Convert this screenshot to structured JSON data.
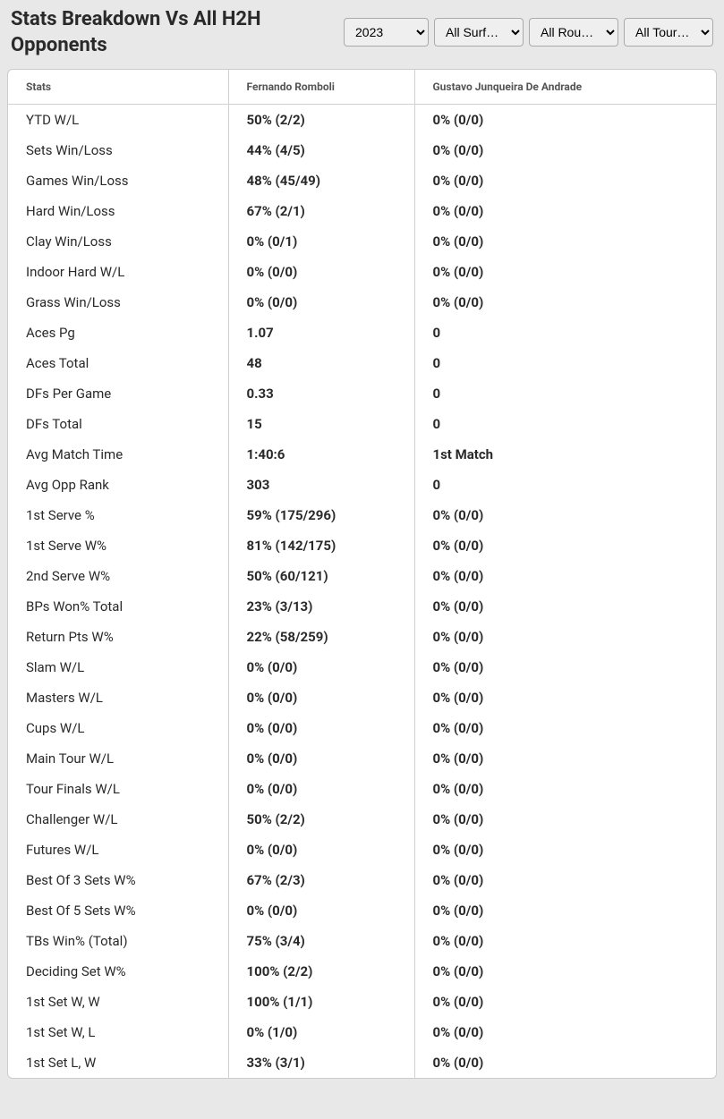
{
  "header": {
    "title": "Stats Breakdown Vs All H2H Opponents"
  },
  "filters": {
    "year": "2023",
    "surface": "All Surfa…",
    "round": "All Rounds",
    "tour": "All Tour…"
  },
  "table": {
    "columns": {
      "stat": "Stats",
      "p1": "Fernando Romboli",
      "p2": "Gustavo Junqueira De Andrade"
    },
    "rows": [
      {
        "stat": "YTD W/L",
        "p1": "50% (2/2)",
        "p2": "0% (0/0)"
      },
      {
        "stat": "Sets Win/Loss",
        "p1": "44% (4/5)",
        "p2": "0% (0/0)"
      },
      {
        "stat": "Games Win/Loss",
        "p1": "48% (45/49)",
        "p2": "0% (0/0)"
      },
      {
        "stat": "Hard Win/Loss",
        "p1": "67% (2/1)",
        "p2": "0% (0/0)"
      },
      {
        "stat": "Clay Win/Loss",
        "p1": "0% (0/1)",
        "p2": "0% (0/0)"
      },
      {
        "stat": "Indoor Hard W/L",
        "p1": "0% (0/0)",
        "p2": "0% (0/0)"
      },
      {
        "stat": "Grass Win/Loss",
        "p1": "0% (0/0)",
        "p2": "0% (0/0)"
      },
      {
        "stat": "Aces Pg",
        "p1": "1.07",
        "p2": "0"
      },
      {
        "stat": "Aces Total",
        "p1": "48",
        "p2": "0"
      },
      {
        "stat": "DFs Per Game",
        "p1": "0.33",
        "p2": "0"
      },
      {
        "stat": "DFs Total",
        "p1": "15",
        "p2": "0"
      },
      {
        "stat": "Avg Match Time",
        "p1": "1:40:6",
        "p2": "1st Match"
      },
      {
        "stat": "Avg Opp Rank",
        "p1": "303",
        "p2": "0"
      },
      {
        "stat": "1st Serve %",
        "p1": "59% (175/296)",
        "p2": "0% (0/0)"
      },
      {
        "stat": "1st Serve W%",
        "p1": "81% (142/175)",
        "p2": "0% (0/0)"
      },
      {
        "stat": "2nd Serve W%",
        "p1": "50% (60/121)",
        "p2": "0% (0/0)"
      },
      {
        "stat": "BPs Won% Total",
        "p1": "23% (3/13)",
        "p2": "0% (0/0)"
      },
      {
        "stat": "Return Pts W%",
        "p1": "22% (58/259)",
        "p2": "0% (0/0)"
      },
      {
        "stat": "Slam W/L",
        "p1": "0% (0/0)",
        "p2": "0% (0/0)"
      },
      {
        "stat": "Masters W/L",
        "p1": "0% (0/0)",
        "p2": "0% (0/0)"
      },
      {
        "stat": "Cups W/L",
        "p1": "0% (0/0)",
        "p2": "0% (0/0)"
      },
      {
        "stat": "Main Tour W/L",
        "p1": "0% (0/0)",
        "p2": "0% (0/0)"
      },
      {
        "stat": "Tour Finals W/L",
        "p1": "0% (0/0)",
        "p2": "0% (0/0)"
      },
      {
        "stat": "Challenger W/L",
        "p1": "50% (2/2)",
        "p2": "0% (0/0)"
      },
      {
        "stat": "Futures W/L",
        "p1": "0% (0/0)",
        "p2": "0% (0/0)"
      },
      {
        "stat": "Best Of 3 Sets W%",
        "p1": "67% (2/3)",
        "p2": "0% (0/0)"
      },
      {
        "stat": "Best Of 5 Sets W%",
        "p1": "0% (0/0)",
        "p2": "0% (0/0)"
      },
      {
        "stat": "TBs Win% (Total)",
        "p1": "75% (3/4)",
        "p2": "0% (0/0)"
      },
      {
        "stat": "Deciding Set W%",
        "p1": "100% (2/2)",
        "p2": "0% (0/0)"
      },
      {
        "stat": "1st Set W, W",
        "p1": "100% (1/1)",
        "p2": "0% (0/0)"
      },
      {
        "stat": "1st Set W, L",
        "p1": "0% (1/0)",
        "p2": "0% (0/0)"
      },
      {
        "stat": "1st Set L, W",
        "p1": "33% (3/1)",
        "p2": "0% (0/0)"
      }
    ]
  },
  "colors": {
    "page_bg": "#e8e8e8",
    "table_bg": "#ffffff",
    "border": "#d0d0d0",
    "text": "#2a2a2a",
    "header_text": "#555555"
  }
}
